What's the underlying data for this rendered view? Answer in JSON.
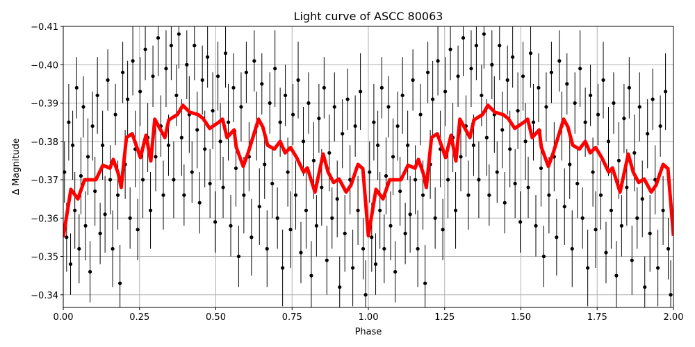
{
  "chart_data": {
    "type": "scatter",
    "title": "Light curve of ASCC 80063",
    "xlabel": "Phase",
    "ylabel": "Δ Magnitude",
    "xlim": [
      0,
      2
    ],
    "ylim": [
      -0.41,
      -0.3367
    ],
    "y_inverted": true,
    "grid": true,
    "xticks": [
      "0.00",
      "0.25",
      "0.50",
      "0.75",
      "1.00",
      "1.25",
      "1.50",
      "1.75",
      "2.00"
    ],
    "yticks": [
      "−0.41",
      "−0.40",
      "−0.39",
      "−0.38",
      "−0.37",
      "−0.36",
      "−0.35",
      "−0.34"
    ],
    "ytick_values": [
      -0.41,
      -0.4,
      -0.39,
      -0.38,
      -0.37,
      -0.36,
      -0.35,
      -0.34
    ],
    "colors": {
      "points": "#000000",
      "model": "#ff0000",
      "grid": "#b0b0b0"
    },
    "points_repeat_period": 1,
    "points": [
      [
        0.004,
        -0.372,
        0.008
      ],
      [
        0.011,
        -0.355,
        0.009
      ],
      [
        0.018,
        -0.385,
        0.01
      ],
      [
        0.024,
        -0.348,
        0.008
      ],
      [
        0.031,
        -0.379,
        0.009
      ],
      [
        0.038,
        -0.362,
        0.01
      ],
      [
        0.044,
        -0.394,
        0.008
      ],
      [
        0.052,
        -0.352,
        0.009
      ],
      [
        0.058,
        -0.371,
        0.01
      ],
      [
        0.066,
        -0.389,
        0.008
      ],
      [
        0.073,
        -0.358,
        0.009
      ],
      [
        0.081,
        -0.376,
        0.01
      ],
      [
        0.088,
        -0.346,
        0.008
      ],
      [
        0.096,
        -0.384,
        0.009
      ],
      [
        0.104,
        -0.367,
        0.009
      ],
      [
        0.112,
        -0.392,
        0.01
      ],
      [
        0.121,
        -0.356,
        0.008
      ],
      [
        0.129,
        -0.379,
        0.009
      ],
      [
        0.137,
        -0.361,
        0.01
      ],
      [
        0.146,
        -0.396,
        0.008
      ],
      [
        0.154,
        -0.37,
        0.009
      ],
      [
        0.162,
        -0.352,
        0.01
      ],
      [
        0.171,
        -0.387,
        0.008
      ],
      [
        0.179,
        -0.366,
        0.009
      ],
      [
        0.186,
        -0.343,
        0.01
      ],
      [
        0.195,
        -0.398,
        0.008
      ],
      [
        0.203,
        -0.374,
        0.009
      ],
      [
        0.211,
        -0.391,
        0.01
      ],
      [
        0.219,
        -0.36,
        0.008
      ],
      [
        0.228,
        -0.401,
        0.009
      ],
      [
        0.236,
        -0.378,
        0.01
      ],
      [
        0.244,
        -0.357,
        0.008
      ],
      [
        0.252,
        -0.393,
        0.009
      ],
      [
        0.261,
        -0.37,
        0.01
      ],
      [
        0.269,
        -0.404,
        0.008
      ],
      [
        0.277,
        -0.381,
        0.009
      ],
      [
        0.286,
        -0.362,
        0.01
      ],
      [
        0.294,
        -0.397,
        0.008
      ],
      [
        0.303,
        -0.376,
        0.009
      ],
      [
        0.311,
        -0.407,
        0.01
      ],
      [
        0.32,
        -0.384,
        0.008
      ],
      [
        0.328,
        -0.366,
        0.009
      ],
      [
        0.337,
        -0.399,
        0.01
      ],
      [
        0.345,
        -0.379,
        0.008
      ],
      [
        0.354,
        -0.405,
        0.009
      ],
      [
        0.362,
        -0.37,
        0.01
      ],
      [
        0.371,
        -0.392,
        0.008
      ],
      [
        0.379,
        -0.408,
        0.009
      ],
      [
        0.388,
        -0.381,
        0.01
      ],
      [
        0.396,
        -0.366,
        0.008
      ],
      [
        0.405,
        -0.4,
        0.009
      ],
      [
        0.413,
        -0.387,
        0.01
      ],
      [
        0.422,
        -0.372,
        0.008
      ],
      [
        0.43,
        -0.405,
        0.009
      ],
      [
        0.439,
        -0.383,
        0.01
      ],
      [
        0.447,
        -0.364,
        0.008
      ],
      [
        0.456,
        -0.396,
        0.009
      ],
      [
        0.464,
        -0.378,
        0.01
      ],
      [
        0.473,
        -0.402,
        0.008
      ],
      [
        0.481,
        -0.369,
        0.009
      ],
      [
        0.49,
        -0.388,
        0.01
      ],
      [
        0.498,
        -0.359,
        0.008
      ],
      [
        0.507,
        -0.397,
        0.009
      ],
      [
        0.515,
        -0.38,
        0.01
      ],
      [
        0.524,
        -0.368,
        0.008
      ],
      [
        0.532,
        -0.403,
        0.009
      ],
      [
        0.541,
        -0.385,
        0.01
      ],
      [
        0.549,
        -0.358,
        0.008
      ],
      [
        0.558,
        -0.394,
        0.009
      ],
      [
        0.566,
        -0.373,
        0.01
      ],
      [
        0.575,
        -0.35,
        0.008
      ],
      [
        0.583,
        -0.389,
        0.009
      ],
      [
        0.592,
        -0.366,
        0.01
      ],
      [
        0.6,
        -0.398,
        0.008
      ],
      [
        0.609,
        -0.376,
        0.009
      ],
      [
        0.617,
        -0.355,
        0.01
      ],
      [
        0.626,
        -0.401,
        0.008
      ],
      [
        0.634,
        -0.384,
        0.009
      ],
      [
        0.643,
        -0.363,
        0.01
      ],
      [
        0.651,
        -0.395,
        0.008
      ],
      [
        0.66,
        -0.374,
        0.009
      ],
      [
        0.668,
        -0.352,
        0.01
      ],
      [
        0.677,
        -0.39,
        0.008
      ],
      [
        0.685,
        -0.369,
        0.009
      ],
      [
        0.694,
        -0.399,
        0.01
      ],
      [
        0.702,
        -0.36,
        0.008
      ],
      [
        0.711,
        -0.385,
        0.009
      ],
      [
        0.719,
        -0.347,
        0.01
      ],
      [
        0.728,
        -0.392,
        0.008
      ],
      [
        0.736,
        -0.372,
        0.009
      ],
      [
        0.745,
        -0.357,
        0.01
      ],
      [
        0.753,
        -0.387,
        0.008
      ],
      [
        0.762,
        -0.366,
        0.009
      ],
      [
        0.77,
        -0.396,
        0.01
      ],
      [
        0.779,
        -0.351,
        0.008
      ],
      [
        0.787,
        -0.38,
        0.009
      ],
      [
        0.796,
        -0.362,
        0.01
      ],
      [
        0.804,
        -0.39,
        0.008
      ],
      [
        0.813,
        -0.345,
        0.009
      ],
      [
        0.821,
        -0.375,
        0.01
      ],
      [
        0.83,
        -0.358,
        0.008
      ],
      [
        0.838,
        -0.386,
        0.009
      ],
      [
        0.847,
        -0.368,
        0.01
      ],
      [
        0.855,
        -0.394,
        0.008
      ],
      [
        0.864,
        -0.349,
        0.009
      ],
      [
        0.872,
        -0.377,
        0.01
      ],
      [
        0.881,
        -0.36,
        0.008
      ],
      [
        0.889,
        -0.389,
        0.009
      ],
      [
        0.898,
        -0.365,
        0.01
      ],
      [
        0.906,
        -0.342,
        0.008
      ],
      [
        0.915,
        -0.382,
        0.009
      ],
      [
        0.923,
        -0.356,
        0.01
      ],
      [
        0.932,
        -0.391,
        0.008
      ],
      [
        0.94,
        -0.37,
        0.009
      ],
      [
        0.949,
        -0.347,
        0.01
      ],
      [
        0.957,
        -0.384,
        0.008
      ],
      [
        0.966,
        -0.362,
        0.009
      ],
      [
        0.974,
        -0.393,
        0.01
      ],
      [
        0.983,
        -0.352,
        0.008
      ],
      [
        0.991,
        -0.34,
        0.009
      ]
    ],
    "model": {
      "x": [
        0.0,
        0.025,
        0.048,
        0.07,
        0.107,
        0.13,
        0.153,
        0.164,
        0.18,
        0.19,
        0.207,
        0.226,
        0.253,
        0.271,
        0.287,
        0.3,
        0.333,
        0.346,
        0.374,
        0.392,
        0.415,
        0.442,
        0.458,
        0.48,
        0.51,
        0.522,
        0.537,
        0.56,
        0.567,
        0.59,
        0.606,
        0.64,
        0.654,
        0.67,
        0.692,
        0.711,
        0.727,
        0.745,
        0.765,
        0.788,
        0.8,
        0.825,
        0.852,
        0.868,
        0.886,
        0.904,
        0.927,
        0.943,
        0.966,
        0.982,
        1.0,
        1.025,
        1.048,
        1.07,
        1.107,
        1.13,
        1.153,
        1.164,
        1.18,
        1.19,
        1.207,
        1.226,
        1.253,
        1.271,
        1.287,
        1.3,
        1.333,
        1.346,
        1.374,
        1.392,
        1.415,
        1.442,
        1.458,
        1.48,
        1.51,
        1.522,
        1.537,
        1.56,
        1.567,
        1.59,
        1.606,
        1.64,
        1.654,
        1.67,
        1.692,
        1.711,
        1.727,
        1.745,
        1.765,
        1.788,
        1.8,
        1.825,
        1.852,
        1.868,
        1.886,
        1.904,
        1.927,
        1.943,
        1.966,
        1.982,
        2.0
      ],
      "y": [
        -0.355,
        -0.3675,
        -0.365,
        -0.37,
        -0.37,
        -0.3738,
        -0.373,
        -0.3753,
        -0.3717,
        -0.368,
        -0.381,
        -0.382,
        -0.3758,
        -0.3816,
        -0.3749,
        -0.3858,
        -0.381,
        -0.3856,
        -0.387,
        -0.3894,
        -0.3876,
        -0.387,
        -0.386,
        -0.3834,
        -0.385,
        -0.3858,
        -0.381,
        -0.383,
        -0.3785,
        -0.3735,
        -0.377,
        -0.3858,
        -0.3838,
        -0.379,
        -0.378,
        -0.38,
        -0.377,
        -0.3784,
        -0.3758,
        -0.372,
        -0.3731,
        -0.3668,
        -0.3767,
        -0.372,
        -0.3693,
        -0.3702,
        -0.3668,
        -0.3686,
        -0.374,
        -0.3729,
        -0.3554,
        -0.3675,
        -0.365,
        -0.37,
        -0.37,
        -0.3738,
        -0.373,
        -0.3753,
        -0.3717,
        -0.368,
        -0.381,
        -0.382,
        -0.3758,
        -0.3816,
        -0.3749,
        -0.3858,
        -0.381,
        -0.3856,
        -0.387,
        -0.3894,
        -0.3876,
        -0.387,
        -0.386,
        -0.3834,
        -0.385,
        -0.3858,
        -0.381,
        -0.383,
        -0.3785,
        -0.3735,
        -0.377,
        -0.3858,
        -0.3838,
        -0.379,
        -0.378,
        -0.38,
        -0.377,
        -0.3784,
        -0.3758,
        -0.372,
        -0.3731,
        -0.3668,
        -0.3767,
        -0.372,
        -0.3693,
        -0.3702,
        -0.3668,
        -0.3686,
        -0.374,
        -0.3729,
        -0.3554
      ]
    }
  }
}
